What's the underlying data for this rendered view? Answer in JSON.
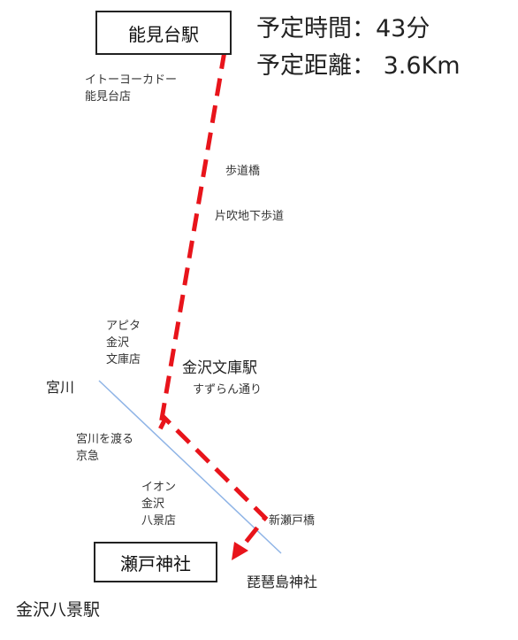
{
  "header": {
    "duration": "予定時間：43分",
    "distance": "予定距離： 3.6Km"
  },
  "stations": {
    "start": "能見台駅",
    "end": "瀬戸神社",
    "kanazawa_bunko": "金沢文庫駅",
    "kanazawa_hakkei": "金沢八景駅"
  },
  "landmarks": {
    "ito_yokado": "イトーヨーカドー\n能見台店",
    "footbridge": "歩道橋",
    "underpass": "片吹地下歩道",
    "apita": "アピタ\n金沢\n文庫店",
    "suzuran": "すずらん通り",
    "miyagawa": "宮川",
    "crossing": "宮川を渡る\n京急",
    "aeon": "イオン\n金沢\n八景店",
    "shinseto_bridge": "新瀬戸橋",
    "biwajima": "琵琶島神社"
  },
  "colors": {
    "route": "#e8141b",
    "river": "#8fb4e6",
    "border": "#222222"
  }
}
